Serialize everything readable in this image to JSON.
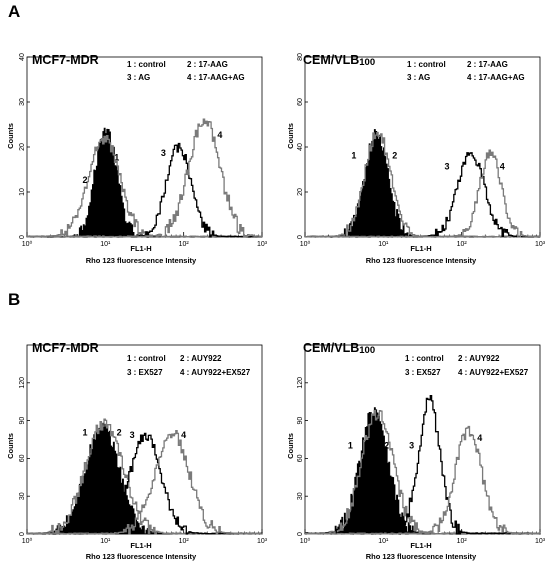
{
  "panels": [
    {
      "letter": "A"
    },
    {
      "letter": "B"
    }
  ],
  "colors": {
    "black": "#000000",
    "gray": "#7a7a7a",
    "fill": "#000000"
  },
  "chart_data": [
    {
      "panel": "A",
      "type": "line",
      "title": "MCF7-MDR",
      "xlabel_top": "FL1-H",
      "xlabel": "Rho 123 fluorescence Intensity",
      "ylabel": "Counts",
      "xscale": "log",
      "xlim": [
        1,
        1000
      ],
      "ylim": [
        0,
        40
      ],
      "xticks": [
        "10⁰",
        "10¹",
        "10²",
        "10³"
      ],
      "yticks": [
        "0",
        "10",
        "20",
        "30",
        "40"
      ],
      "legend": [
        "1 : control",
        "2 : 17-AAG",
        "3 : AG",
        "4 : 17-AAG+AG"
      ],
      "series": [
        {
          "name": "1",
          "style": "filled",
          "color": "#000000",
          "center": 10,
          "sigma": 0.14,
          "peak": 24
        },
        {
          "name": "2",
          "style": "line",
          "color": "#7a7a7a",
          "center": 9.5,
          "sigma": 0.2,
          "peak": 22
        },
        {
          "name": "3",
          "style": "line",
          "color": "#000000",
          "center": 85,
          "sigma": 0.16,
          "peak": 20
        },
        {
          "name": "4",
          "style": "line",
          "color": "#7a7a7a",
          "center": 180,
          "sigma": 0.2,
          "peak": 26
        }
      ],
      "curve_labels": [
        {
          "text": "1",
          "x": 14,
          "y": 17
        },
        {
          "text": "2",
          "x": 5.5,
          "y": 12
        },
        {
          "text": "3",
          "x": 55,
          "y": 18
        },
        {
          "text": "4",
          "x": 290,
          "y": 22
        }
      ]
    },
    {
      "panel": "A",
      "type": "line",
      "title": "CEM/VLB",
      "title_sub": "100",
      "xlabel_top": "FL1-H",
      "xlabel": "Rho 123 fluorescence Intensity",
      "ylabel": "Counts",
      "xscale": "log",
      "xlim": [
        1,
        1000
      ],
      "ylim": [
        0,
        80
      ],
      "xticks": [
        "10⁰",
        "10¹",
        "10²",
        "10³"
      ],
      "yticks": [
        "0",
        "20",
        "40",
        "60",
        "80"
      ],
      "legend": [
        "1 : control",
        "2 : 17-AAG",
        "3 : AG",
        "4 : 17-AAG+AG"
      ],
      "series": [
        {
          "name": "1",
          "style": "filled",
          "color": "#000000",
          "center": 8,
          "sigma": 0.15,
          "peak": 46
        },
        {
          "name": "2",
          "style": "line",
          "color": "#7a7a7a",
          "center": 8.3,
          "sigma": 0.16,
          "peak": 47
        },
        {
          "name": "3",
          "style": "line",
          "color": "#000000",
          "center": 130,
          "sigma": 0.17,
          "peak": 37
        },
        {
          "name": "4",
          "style": "line",
          "color": "#7a7a7a",
          "center": 230,
          "sigma": 0.14,
          "peak": 37
        }
      ],
      "curve_labels": [
        {
          "text": "1",
          "x": 4.2,
          "y": 35
        },
        {
          "text": "2",
          "x": 14,
          "y": 35
        },
        {
          "text": "3",
          "x": 65,
          "y": 30
        },
        {
          "text": "4",
          "x": 330,
          "y": 30
        }
      ]
    },
    {
      "panel": "B",
      "type": "line",
      "title": "MCF7-MDR",
      "xlabel_top": "FL1-H",
      "xlabel": "Rho 123 fluorescence Intensity",
      "ylabel": "Counts",
      "xscale": "log",
      "xlim": [
        1,
        1000
      ],
      "ylim": [
        0,
        150
      ],
      "xticks": [
        "10⁰",
        "10¹",
        "10²",
        "10³"
      ],
      "yticks": [
        "0",
        "30",
        "60",
        "90",
        "120"
      ],
      "legend": [
        "1 : control",
        "2 : AUY922",
        "3 : EX527",
        "4 : AUY922+EX527"
      ],
      "series": [
        {
          "name": "1",
          "style": "filled",
          "color": "#000000",
          "center": 9,
          "sigma": 0.22,
          "peak": 85
        },
        {
          "name": "2",
          "style": "line",
          "color": "#7a7a7a",
          "center": 9.5,
          "sigma": 0.24,
          "peak": 88
        },
        {
          "name": "3",
          "style": "line",
          "color": "#000000",
          "center": 32,
          "sigma": 0.2,
          "peak": 78
        },
        {
          "name": "4",
          "style": "line",
          "color": "#7a7a7a",
          "center": 70,
          "sigma": 0.22,
          "peak": 80
        }
      ],
      "curve_labels": [
        {
          "text": "1",
          "x": 5.5,
          "y": 78
        },
        {
          "text": "2",
          "x": 15,
          "y": 78
        },
        {
          "text": "3",
          "x": 22,
          "y": 76
        },
        {
          "text": "4",
          "x": 100,
          "y": 76
        }
      ]
    },
    {
      "panel": "B",
      "type": "line",
      "title": "CEM/VLB",
      "title_sub": "100",
      "xlabel_top": "FL1-H",
      "xlabel": "Rho 123 fluorescence Intensity",
      "ylabel": "Counts",
      "xscale": "log",
      "xlim": [
        1,
        1000
      ],
      "ylim": [
        0,
        150
      ],
      "xticks": [
        "10⁰",
        "10¹",
        "10²",
        "10³"
      ],
      "yticks": [
        "0",
        "30",
        "60",
        "90",
        "120"
      ],
      "legend": [
        "1 : control",
        "2 : AUY922",
        "3 : EX527",
        "4 : AUY922+EX527"
      ],
      "series": [
        {
          "name": "1",
          "style": "filled",
          "color": "#000000",
          "center": 7.5,
          "sigma": 0.18,
          "peak": 100
        },
        {
          "name": "2",
          "style": "line",
          "color": "#7a7a7a",
          "center": 8.2,
          "sigma": 0.2,
          "peak": 96
        },
        {
          "name": "3",
          "style": "line",
          "color": "#000000",
          "center": 38,
          "sigma": 0.14,
          "peak": 105
        },
        {
          "name": "4",
          "style": "line",
          "color": "#7a7a7a",
          "center": 120,
          "sigma": 0.17,
          "peak": 82
        }
      ],
      "curve_labels": [
        {
          "text": "1",
          "x": 3.8,
          "y": 68
        },
        {
          "text": "2",
          "x": 11,
          "y": 68
        },
        {
          "text": "3",
          "x": 23,
          "y": 68
        },
        {
          "text": "4",
          "x": 170,
          "y": 74
        }
      ]
    }
  ]
}
